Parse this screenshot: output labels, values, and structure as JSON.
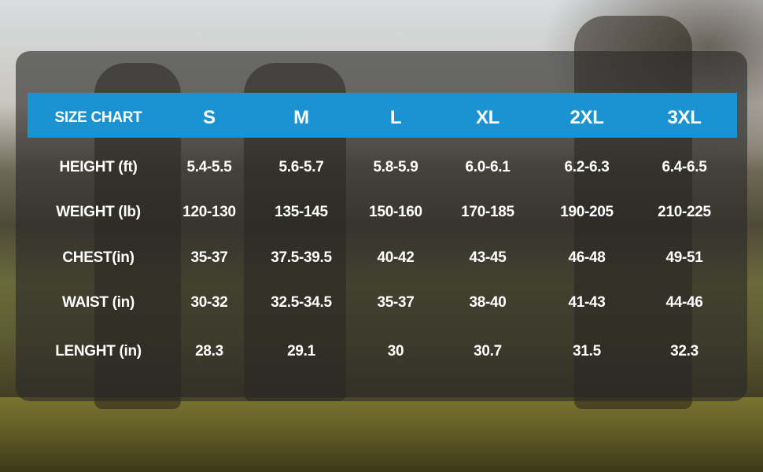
{
  "size_chart": {
    "header": [
      "SIZE CHART",
      "S",
      "M",
      "L",
      "XL",
      "2XL",
      "3XL"
    ],
    "rows": [
      [
        "HEIGHT (ft)",
        "5.4-5.5",
        "5.6-5.7",
        "5.8-5.9",
        "6.0-6.1",
        "6.2-6.3",
        "6.4-6.5"
      ],
      [
        "WEIGHT (lb)",
        "120-130",
        "135-145",
        "150-160",
        "170-185",
        "190-205",
        "210-225"
      ],
      [
        "CHEST(in)",
        "35-37",
        "37.5-39.5",
        "40-42",
        "43-45",
        "46-48",
        "49-51"
      ],
      [
        "WAIST (in)",
        "30-32",
        "32.5-34.5",
        "35-37",
        "38-40",
        "41-43",
        "44-46"
      ],
      [
        "LENGHT (in)",
        "28.3",
        "29.1",
        "30",
        "30.7",
        "31.5",
        "32.3"
      ]
    ]
  },
  "colors": {
    "header_bar": "#1b93d3",
    "text": "#ffffff"
  }
}
